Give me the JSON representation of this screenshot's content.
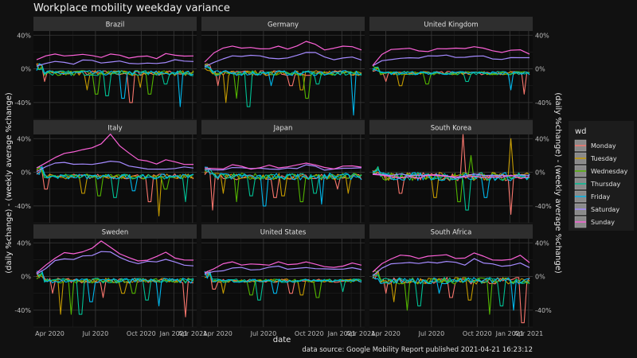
{
  "chart_data": {
    "type": "line",
    "title": "Workplace mobility weekday variance",
    "xlabel": "date",
    "ylabel_left": "(daily %change) - (weekly average %change)",
    "ylabel_right": "(daily %change) - (weekly average %change)",
    "caption": "data source: Google Mobility Report published 2021-04-21 16:23:12",
    "x_ticks": [
      "Apr 2020",
      "Jul 2020",
      "Oct 2020",
      "Jan 2021",
      "Apr 2021"
    ],
    "y_ticks": [
      "40%",
      "0%",
      "-40%"
    ],
    "ylim": [
      -60,
      45
    ],
    "legend": {
      "title": "wd",
      "entries": [
        "Monday",
        "Tuesday",
        "Wednesday",
        "Thursday",
        "Friday",
        "Saturday",
        "Sunday"
      ],
      "colors": [
        "#F8766D",
        "#C49A00",
        "#53B400",
        "#00C094",
        "#00B6EB",
        "#A58AFF",
        "#FB61D7"
      ]
    },
    "panels": [
      {
        "name": "Brazil",
        "sat": [
          2,
          8,
          10,
          8,
          7,
          10,
          9,
          8,
          9,
          8,
          6,
          7,
          8,
          6,
          9,
          10,
          9,
          8
        ],
        "sun": [
          12,
          16,
          17,
          14,
          16,
          17,
          15,
          13,
          17,
          16,
          14,
          16,
          15,
          13,
          18,
          17,
          16,
          15
        ],
        "dips": [
          [
            0.05,
            -15
          ],
          [
            0.32,
            -25
          ],
          [
            0.38,
            -30
          ],
          [
            0.45,
            -32
          ],
          [
            0.55,
            -35
          ],
          [
            0.6,
            -40
          ],
          [
            0.66,
            -22
          ],
          [
            0.72,
            -30
          ],
          [
            0.82,
            -18
          ],
          [
            0.92,
            -45
          ]
        ],
        "spread": 3
      },
      {
        "name": "Germany",
        "sat": [
          2,
          8,
          12,
          14,
          15,
          16,
          15,
          14,
          13,
          14,
          15,
          20,
          18,
          14,
          12,
          13,
          14,
          12
        ],
        "sun": [
          8,
          18,
          25,
          28,
          26,
          25,
          24,
          25,
          26,
          25,
          26,
          32,
          28,
          22,
          24,
          26,
          27,
          22
        ],
        "dips": [
          [
            0.08,
            -20
          ],
          [
            0.14,
            -40
          ],
          [
            0.2,
            -35
          ],
          [
            0.28,
            -45
          ],
          [
            0.42,
            -20
          ],
          [
            0.55,
            -20
          ],
          [
            0.62,
            -25
          ],
          [
            0.65,
            -35
          ],
          [
            0.72,
            -18
          ],
          [
            0.95,
            -55
          ]
        ],
        "spread": 3
      },
      {
        "name": "United Kingdom",
        "sat": [
          3,
          10,
          12,
          14,
          14,
          13,
          14,
          15,
          16,
          15,
          14,
          16,
          14,
          13,
          12,
          13,
          14,
          12
        ],
        "sun": [
          5,
          18,
          22,
          24,
          23,
          22,
          22,
          23,
          24,
          25,
          23,
          26,
          24,
          21,
          20,
          21,
          22,
          19
        ],
        "dips": [
          [
            0.08,
            -15
          ],
          [
            0.18,
            -20
          ],
          [
            0.35,
            -18
          ],
          [
            0.6,
            -15
          ],
          [
            0.88,
            -25
          ],
          [
            0.97,
            -30
          ]
        ],
        "spread": 2
      },
      {
        "name": "Italy",
        "sat": [
          2,
          6,
          10,
          12,
          10,
          9,
          8,
          10,
          12,
          11,
          8,
          6,
          5,
          4,
          5,
          6,
          5,
          4
        ],
        "sun": [
          4,
          10,
          18,
          22,
          24,
          26,
          30,
          35,
          44,
          30,
          22,
          16,
          12,
          10,
          15,
          12,
          10,
          8
        ],
        "dips": [
          [
            0.06,
            -20
          ],
          [
            0.3,
            -25
          ],
          [
            0.4,
            -28
          ],
          [
            0.5,
            -30
          ],
          [
            0.62,
            -22
          ],
          [
            0.72,
            -35
          ],
          [
            0.78,
            -52
          ],
          [
            0.82,
            -20
          ],
          [
            0.95,
            -35
          ]
        ],
        "spread": 3
      },
      {
        "name": "Japan",
        "sat": [
          2,
          4,
          3,
          5,
          4,
          3,
          4,
          5,
          3,
          4,
          5,
          8,
          6,
          4,
          3,
          4,
          5,
          4
        ],
        "sun": [
          4,
          6,
          5,
          8,
          6,
          5,
          6,
          8,
          5,
          6,
          8,
          12,
          9,
          6,
          5,
          6,
          8,
          6
        ],
        "dips": [
          [
            0.05,
            -45
          ],
          [
            0.12,
            -25
          ],
          [
            0.2,
            -35
          ],
          [
            0.3,
            -28
          ],
          [
            0.38,
            -40
          ],
          [
            0.45,
            -30
          ],
          [
            0.5,
            -28
          ],
          [
            0.62,
            -35
          ],
          [
            0.7,
            -25
          ],
          [
            0.75,
            -38
          ],
          [
            0.85,
            -20
          ],
          [
            0.92,
            -25
          ]
        ],
        "spread": 4
      },
      {
        "name": "South Korea",
        "sat": [
          -2,
          -3,
          -4,
          -3,
          -5,
          -4,
          -3,
          -4,
          -5,
          -6,
          -4,
          -3,
          -4,
          -5,
          -4,
          -3,
          -4,
          -5
        ],
        "sun": [
          -3,
          -4,
          -5,
          -6,
          -5,
          -6,
          -4,
          -5,
          -6,
          -5,
          -6,
          -4,
          -5,
          -6,
          -5,
          -4,
          -6,
          -5
        ],
        "dips": [
          [
            0.18,
            -25
          ],
          [
            0.4,
            -30
          ],
          [
            0.55,
            -35
          ],
          [
            0.6,
            -45
          ],
          [
            0.72,
            -30
          ],
          [
            0.88,
            -50
          ]
        ],
        "spread": 5,
        "spikes": [
          [
            0.58,
            45
          ],
          [
            0.88,
            40
          ],
          [
            0.63,
            20
          ]
        ]
      },
      {
        "name": "Sweden",
        "sat": [
          2,
          10,
          18,
          22,
          20,
          24,
          26,
          30,
          28,
          22,
          18,
          16,
          17,
          18,
          20,
          16,
          15,
          14
        ],
        "sun": [
          4,
          14,
          22,
          28,
          26,
          30,
          34,
          42,
          36,
          28,
          22,
          20,
          20,
          24,
          30,
          22,
          20,
          18
        ],
        "dips": [
          [
            0.1,
            -20
          ],
          [
            0.15,
            -45
          ],
          [
            0.22,
            -45
          ],
          [
            0.28,
            -45
          ],
          [
            0.35,
            -30
          ],
          [
            0.42,
            -25
          ],
          [
            0.55,
            -20
          ],
          [
            0.62,
            -20
          ],
          [
            0.7,
            -28
          ],
          [
            0.78,
            -35
          ],
          [
            0.95,
            -48
          ]
        ],
        "spread": 3
      },
      {
        "name": "United States",
        "sat": [
          2,
          6,
          8,
          10,
          10,
          9,
          9,
          10,
          11,
          10,
          9,
          12,
          10,
          9,
          8,
          9,
          10,
          9
        ],
        "sun": [
          4,
          10,
          14,
          16,
          15,
          14,
          14,
          15,
          16,
          15,
          14,
          18,
          15,
          13,
          12,
          13,
          15,
          13
        ],
        "dips": [
          [
            0.06,
            -15
          ],
          [
            0.12,
            -20
          ],
          [
            0.3,
            -22
          ],
          [
            0.35,
            -28
          ],
          [
            0.45,
            -20
          ],
          [
            0.55,
            -20
          ],
          [
            0.62,
            -22
          ],
          [
            0.72,
            -25
          ],
          [
            0.88,
            -18
          ]
        ],
        "spread": 2
      },
      {
        "name": "South Africa",
        "sat": [
          2,
          10,
          14,
          16,
          18,
          15,
          16,
          17,
          18,
          16,
          15,
          20,
          16,
          14,
          13,
          14,
          16,
          12
        ],
        "sun": [
          5,
          16,
          22,
          24,
          26,
          22,
          24,
          25,
          26,
          23,
          22,
          28,
          24,
          20,
          19,
          21,
          24,
          18
        ],
        "dips": [
          [
            0.08,
            -20
          ],
          [
            0.14,
            -30
          ],
          [
            0.22,
            -40
          ],
          [
            0.3,
            -35
          ],
          [
            0.42,
            -20
          ],
          [
            0.5,
            -25
          ],
          [
            0.62,
            -28
          ],
          [
            0.75,
            -45
          ],
          [
            0.82,
            -35
          ],
          [
            0.9,
            -40
          ],
          [
            0.96,
            -55
          ]
        ],
        "spread": 4
      }
    ]
  }
}
